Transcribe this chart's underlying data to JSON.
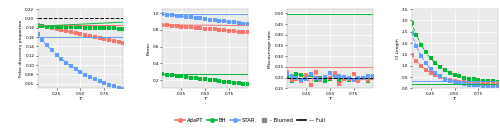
{
  "tau": [
    0.05,
    0.1,
    0.15,
    0.2,
    0.25,
    0.3,
    0.35,
    0.4,
    0.45,
    0.5,
    0.55,
    0.6,
    0.65,
    0.7,
    0.75,
    0.8,
    0.85,
    0.9,
    0.95
  ],
  "colors": {
    "AdaPT": "#F8766D",
    "BH": "#00BA38",
    "STAR": "#619CFF",
    "black": "#000000"
  },
  "panel1_ylabel": "False discovery proportion",
  "panel2_ylabel": "Power",
  "panel3_ylabel": "Miscoverage rate",
  "panel4_ylabel": "CI Length",
  "xlabel": "τ",
  "background_color": "#ffffff",
  "grid_color": "#ebebeb",
  "panel_bg": "#ebebeb"
}
